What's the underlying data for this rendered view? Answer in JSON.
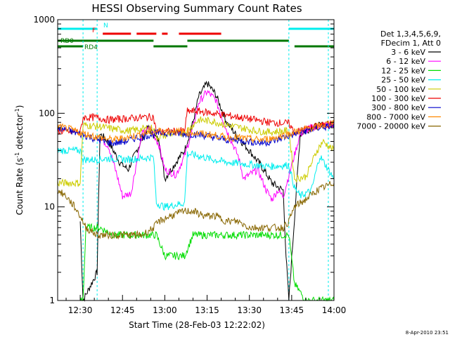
{
  "chart_data": {
    "type": "line",
    "title": "HESSI Observing Summary Count Rates",
    "xlabel": "Start Time (28-Feb-03 12:22:02)",
    "ylabel_main": "Count Rate (s",
    "ylabel_sup": "-1",
    "ylabel_rest": " detector",
    "ylabel_end": ")",
    "x_range_minutes": [
      0,
      98
    ],
    "x_ticks": [
      {
        "label": "12:30",
        "minute": 8
      },
      {
        "label": "12:45",
        "minute": 23
      },
      {
        "label": "13:00",
        "minute": 38
      },
      {
        "label": "13:15",
        "minute": 53
      },
      {
        "label": "13:30",
        "minute": 68
      },
      {
        "label": "13:45",
        "minute": 83
      },
      {
        "label": "14:00",
        "minute": 98
      }
    ],
    "y_scale": "log",
    "y_range": [
      1,
      1000
    ],
    "y_ticks": [
      {
        "label": "1",
        "value": 1
      },
      {
        "label": "10",
        "value": 10
      },
      {
        "label": "100",
        "value": 100
      },
      {
        "label": "1000",
        "value": 1000
      }
    ],
    "legend_header": [
      "Det 1,3,4,5,6,9,",
      "FDecim 1, Att 0"
    ],
    "series": [
      {
        "name": "3 - 6 keV",
        "color": "#000000",
        "points": [
          [
            8,
            7
          ],
          [
            9,
            1
          ],
          [
            14,
            2
          ],
          [
            15,
            60
          ],
          [
            18,
            50
          ],
          [
            22,
            30
          ],
          [
            25,
            25
          ],
          [
            28,
            40
          ],
          [
            32,
            70
          ],
          [
            36,
            50
          ],
          [
            38,
            20
          ],
          [
            42,
            30
          ],
          [
            45,
            40
          ],
          [
            48,
            80
          ],
          [
            50,
            150
          ],
          [
            53,
            210
          ],
          [
            56,
            160
          ],
          [
            60,
            80
          ],
          [
            64,
            55
          ],
          [
            68,
            40
          ],
          [
            72,
            28
          ],
          [
            76,
            18
          ],
          [
            80,
            15
          ],
          [
            81,
            3
          ],
          [
            82,
            1
          ],
          [
            86,
            60
          ],
          [
            90,
            70
          ],
          [
            94,
            75
          ],
          [
            98,
            78
          ]
        ]
      },
      {
        "name": "6 - 12 keV",
        "color": "#ff00ff",
        "points": [
          [
            15,
            55
          ],
          [
            18,
            45
          ],
          [
            21,
            22
          ],
          [
            23,
            13
          ],
          [
            26,
            14
          ],
          [
            28,
            30
          ],
          [
            30,
            60
          ],
          [
            33,
            70
          ],
          [
            36,
            45
          ],
          [
            38,
            25
          ],
          [
            42,
            22
          ],
          [
            45,
            35
          ],
          [
            48,
            70
          ],
          [
            50,
            130
          ],
          [
            53,
            170
          ],
          [
            56,
            140
          ],
          [
            60,
            65
          ],
          [
            64,
            35
          ],
          [
            66,
            20
          ],
          [
            68,
            22
          ],
          [
            71,
            25
          ],
          [
            74,
            15
          ],
          [
            76,
            12
          ],
          [
            78,
            15
          ],
          [
            80,
            13
          ],
          [
            86,
            60
          ],
          [
            90,
            70
          ],
          [
            94,
            75
          ],
          [
            98,
            76
          ]
        ]
      },
      {
        "name": "12 - 25 keV",
        "color": "#00dd00",
        "points": [
          [
            8,
            1
          ],
          [
            9,
            1
          ],
          [
            10,
            6
          ],
          [
            15,
            6
          ],
          [
            20,
            5
          ],
          [
            25,
            5
          ],
          [
            34,
            5
          ],
          [
            35,
            5
          ],
          [
            38,
            3
          ],
          [
            45,
            3
          ],
          [
            48,
            5
          ],
          [
            55,
            5
          ],
          [
            60,
            5
          ],
          [
            70,
            5
          ],
          [
            80,
            5
          ],
          [
            82,
            5
          ],
          [
            84,
            1.5
          ],
          [
            88,
            1
          ],
          [
            94,
            1
          ],
          [
            98,
            1
          ]
        ]
      },
      {
        "name": "25 - 50 keV",
        "color": "#00eeee",
        "points": [
          [
            0,
            40
          ],
          [
            8,
            40
          ],
          [
            9,
            32
          ],
          [
            14,
            32
          ],
          [
            18,
            33
          ],
          [
            25,
            32
          ],
          [
            34,
            34
          ],
          [
            35,
            11
          ],
          [
            38,
            10
          ],
          [
            45,
            11
          ],
          [
            46,
            37
          ],
          [
            50,
            35
          ],
          [
            55,
            32
          ],
          [
            60,
            30
          ],
          [
            65,
            29
          ],
          [
            70,
            28
          ],
          [
            75,
            27
          ],
          [
            82,
            28
          ],
          [
            84,
            16
          ],
          [
            86,
            13
          ],
          [
            90,
            15
          ],
          [
            93,
            35
          ],
          [
            95,
            28
          ],
          [
            98,
            20
          ]
        ]
      },
      {
        "name": "50 - 100 keV",
        "color": "#cccc00",
        "points": [
          [
            0,
            18
          ],
          [
            8,
            18
          ],
          [
            9,
            75
          ],
          [
            15,
            72
          ],
          [
            20,
            68
          ],
          [
            25,
            65
          ],
          [
            34,
            70
          ],
          [
            35,
            55
          ],
          [
            40,
            60
          ],
          [
            45,
            62
          ],
          [
            50,
            85
          ],
          [
            55,
            82
          ],
          [
            60,
            75
          ],
          [
            65,
            70
          ],
          [
            70,
            65
          ],
          [
            75,
            63
          ],
          [
            82,
            65
          ],
          [
            84,
            20
          ],
          [
            88,
            21
          ],
          [
            92,
            40
          ],
          [
            94,
            50
          ],
          [
            96,
            45
          ],
          [
            98,
            40
          ]
        ]
      },
      {
        "name": "100 - 300 keV",
        "color": "#ee0000",
        "points": [
          [
            0,
            65
          ],
          [
            8,
            62
          ],
          [
            9,
            90
          ],
          [
            14,
            90
          ],
          [
            18,
            85
          ],
          [
            25,
            88
          ],
          [
            34,
            92
          ],
          [
            35,
            62
          ],
          [
            40,
            64
          ],
          [
            45,
            65
          ],
          [
            46,
            105
          ],
          [
            50,
            105
          ],
          [
            55,
            100
          ],
          [
            60,
            95
          ],
          [
            65,
            90
          ],
          [
            70,
            85
          ],
          [
            75,
            80
          ],
          [
            82,
            78
          ],
          [
            84,
            62
          ],
          [
            88,
            68
          ],
          [
            92,
            72
          ],
          [
            95,
            75
          ],
          [
            98,
            78
          ]
        ]
      },
      {
        "name": "300 - 800 keV",
        "color": "#0000cc",
        "points": [
          [
            0,
            70
          ],
          [
            4,
            65
          ],
          [
            8,
            60
          ],
          [
            12,
            55
          ],
          [
            16,
            50
          ],
          [
            20,
            48
          ],
          [
            24,
            50
          ],
          [
            28,
            55
          ],
          [
            32,
            58
          ],
          [
            36,
            62
          ],
          [
            40,
            62
          ],
          [
            44,
            60
          ],
          [
            48,
            60
          ],
          [
            52,
            58
          ],
          [
            56,
            55
          ],
          [
            60,
            52
          ],
          [
            64,
            52
          ],
          [
            68,
            50
          ],
          [
            72,
            48
          ],
          [
            76,
            50
          ],
          [
            80,
            55
          ],
          [
            84,
            60
          ],
          [
            88,
            65
          ],
          [
            92,
            70
          ],
          [
            96,
            72
          ],
          [
            98,
            75
          ]
        ]
      },
      {
        "name": "800 - 7000 keV",
        "color": "#ff8800",
        "points": [
          [
            0,
            72
          ],
          [
            4,
            68
          ],
          [
            8,
            62
          ],
          [
            12,
            58
          ],
          [
            16,
            54
          ],
          [
            20,
            52
          ],
          [
            24,
            55
          ],
          [
            28,
            58
          ],
          [
            32,
            62
          ],
          [
            36,
            65
          ],
          [
            40,
            65
          ],
          [
            44,
            63
          ],
          [
            48,
            62
          ],
          [
            52,
            60
          ],
          [
            56,
            58
          ],
          [
            60,
            55
          ],
          [
            64,
            55
          ],
          [
            68,
            53
          ],
          [
            72,
            52
          ],
          [
            76,
            54
          ],
          [
            80,
            58
          ],
          [
            84,
            63
          ],
          [
            88,
            68
          ],
          [
            92,
            72
          ],
          [
            96,
            78
          ],
          [
            98,
            80
          ]
        ]
      },
      {
        "name": "7000 - 20000 keV",
        "color": "#886600",
        "points": [
          [
            0,
            15
          ],
          [
            3,
            13
          ],
          [
            6,
            10
          ],
          [
            8,
            8
          ],
          [
            10,
            6
          ],
          [
            14,
            5
          ],
          [
            18,
            5
          ],
          [
            22,
            5
          ],
          [
            26,
            5
          ],
          [
            30,
            5
          ],
          [
            34,
            6
          ],
          [
            36,
            7
          ],
          [
            40,
            8
          ],
          [
            45,
            9
          ],
          [
            48,
            9
          ],
          [
            52,
            8
          ],
          [
            56,
            8
          ],
          [
            60,
            7
          ],
          [
            64,
            7
          ],
          [
            68,
            6
          ],
          [
            72,
            6
          ],
          [
            76,
            6
          ],
          [
            80,
            6
          ],
          [
            82,
            7
          ],
          [
            84,
            10
          ],
          [
            88,
            12
          ],
          [
            92,
            15
          ],
          [
            96,
            17
          ],
          [
            98,
            18
          ]
        ]
      }
    ],
    "flags": [
      {
        "label": "N",
        "color": "#00eeee",
        "segments": [
          [
            0,
            14
          ],
          [
            82,
            98
          ]
        ]
      },
      {
        "label": "F",
        "color": "#ee0000",
        "segments": [
          [
            16,
            26
          ],
          [
            28,
            35
          ],
          [
            37,
            39
          ],
          [
            43,
            58
          ]
        ]
      },
      {
        "label": "RD0",
        "color": "#007700",
        "segments": [
          [
            0,
            34
          ],
          [
            46,
            82
          ]
        ]
      },
      {
        "label": "RD4",
        "color": "#007700",
        "segments": [
          [
            0,
            9
          ],
          [
            34,
            46
          ],
          [
            84,
            98
          ]
        ]
      }
    ],
    "vertical_markers_minutes": [
      9,
      14,
      82,
      96
    ],
    "timestamp": "8-Apr-2010 23:51"
  }
}
